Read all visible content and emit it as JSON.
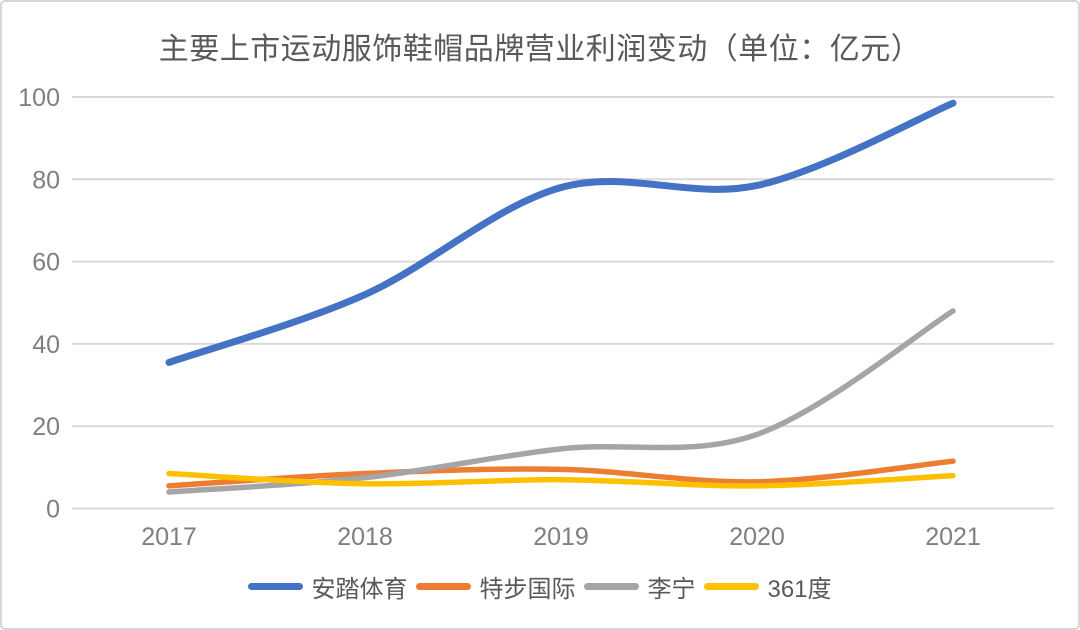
{
  "chart_data": {
    "type": "line",
    "title": "主要上市运动服饰鞋帽品牌营业利润变动（单位：亿元）",
    "categories": [
      "2017",
      "2018",
      "2019",
      "2020",
      "2021"
    ],
    "series": [
      {
        "name": "安踏体育",
        "color": "#4472C4",
        "values": [
          35.5,
          52,
          78,
          78.5,
          98.5
        ]
      },
      {
        "name": "特步国际",
        "color": "#ED7D31",
        "values": [
          5.5,
          8.5,
          9.5,
          6.5,
          11.5
        ]
      },
      {
        "name": "李宁",
        "color": "#A5A5A5",
        "values": [
          4,
          7.5,
          14.5,
          18,
          48
        ]
      },
      {
        "name": "361度",
        "color": "#FFC000",
        "values": [
          8.5,
          6,
          7,
          5.5,
          8
        ]
      }
    ],
    "xlabel": "",
    "ylabel": "",
    "ylim": [
      0,
      100
    ],
    "yticks": [
      0,
      20,
      40,
      60,
      80,
      100
    ],
    "grid": true,
    "smooth": true,
    "legend_position": "bottom"
  },
  "colors": {
    "background": "#FFFFFF",
    "frame_border": "#D6D6D6",
    "gridline": "#D9D9D9",
    "axis_tick_text": "#7F7F7F",
    "title_text": "#595959",
    "legend_text": "#595959"
  }
}
